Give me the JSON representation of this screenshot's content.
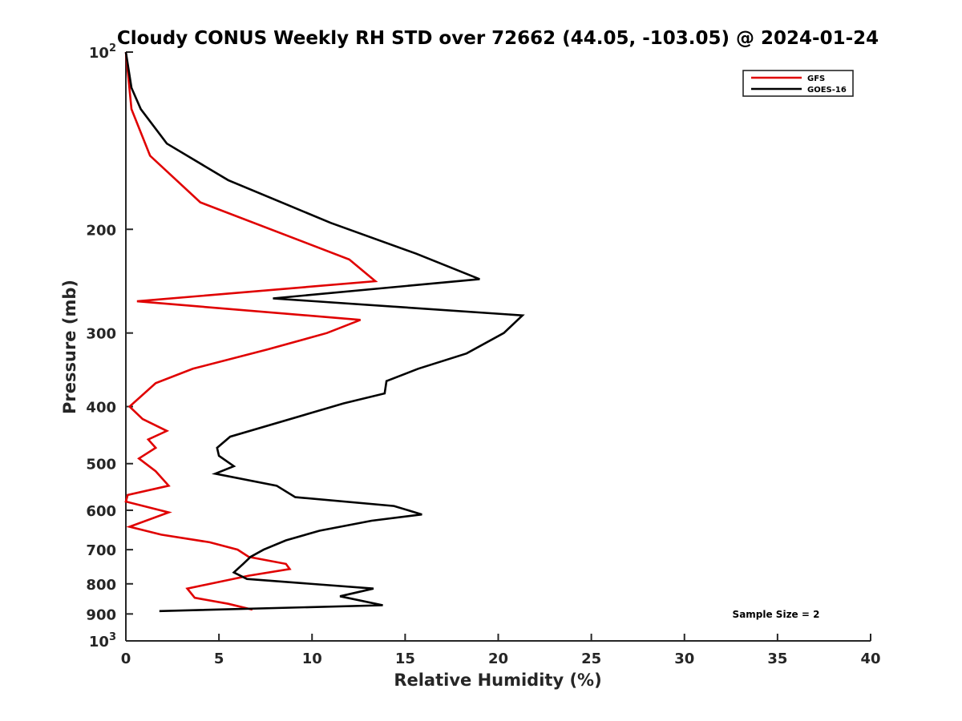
{
  "chart_data": {
    "type": "line",
    "orientation": "vertical-profile",
    "title": "Cloudy CONUS Weekly RH STD over 72662 (44.05, -103.05) @ 2024-01-24",
    "xlabel": "Relative Humidity (%)",
    "ylabel": "Pressure (mb)",
    "xlim": [
      0,
      40
    ],
    "ylim": [
      100,
      1000
    ],
    "y_scale": "log",
    "y_inverted": true,
    "grid": false,
    "xticks": [
      0,
      5,
      10,
      15,
      20,
      25,
      30,
      35,
      40
    ],
    "xtick_labels": [
      "0",
      "5",
      "10",
      "15",
      "20",
      "25",
      "30",
      "35",
      "40"
    ],
    "yticks": [
      100,
      200,
      300,
      400,
      500,
      600,
      700,
      800,
      900,
      1000
    ],
    "ytick_labels": [
      {
        "base": "10",
        "exp": "2"
      },
      {
        "text": "200"
      },
      {
        "text": "300"
      },
      {
        "text": "400"
      },
      {
        "text": "500"
      },
      {
        "text": "600"
      },
      {
        "text": "700"
      },
      {
        "text": "800"
      },
      {
        "text": "900"
      },
      {
        "base": "10",
        "exp": "3"
      }
    ],
    "legend_position": "top-right",
    "annotation": "Sample Size = 2",
    "series": [
      {
        "name": "GFS",
        "color": "#e00000",
        "points": [
          [
            0.0,
            100
          ],
          [
            0.3,
            125
          ],
          [
            1.3,
            150
          ],
          [
            4.0,
            180
          ],
          [
            12.0,
            225
          ],
          [
            13.4,
            245
          ],
          [
            0.6,
            265
          ],
          [
            12.6,
            285
          ],
          [
            10.8,
            300
          ],
          [
            7.6,
            320
          ],
          [
            3.6,
            345
          ],
          [
            1.6,
            365
          ],
          [
            0.2,
            400
          ],
          [
            0.9,
            420
          ],
          [
            2.2,
            440
          ],
          [
            1.2,
            455
          ],
          [
            1.6,
            470
          ],
          [
            0.7,
            490
          ],
          [
            1.6,
            515
          ],
          [
            2.3,
            545
          ],
          [
            0.1,
            565
          ],
          [
            0.0,
            580
          ],
          [
            2.3,
            605
          ],
          [
            0.2,
            640
          ],
          [
            1.9,
            660
          ],
          [
            4.5,
            680
          ],
          [
            6.0,
            700
          ],
          [
            6.6,
            720
          ],
          [
            8.6,
            740
          ],
          [
            8.8,
            755
          ],
          [
            6.6,
            775
          ],
          [
            3.3,
            815
          ],
          [
            3.7,
            845
          ],
          [
            5.5,
            865
          ],
          [
            6.8,
            885
          ]
        ]
      },
      {
        "name": "GOES-16",
        "color": "#000000",
        "points": [
          [
            0.0,
            100
          ],
          [
            0.3,
            115
          ],
          [
            0.8,
            125
          ],
          [
            2.2,
            143
          ],
          [
            5.5,
            165
          ],
          [
            11.0,
            195
          ],
          [
            15.6,
            220
          ],
          [
            19.0,
            243
          ],
          [
            7.9,
            262
          ],
          [
            21.3,
            280
          ],
          [
            20.3,
            300
          ],
          [
            18.3,
            325
          ],
          [
            15.7,
            345
          ],
          [
            14.0,
            362
          ],
          [
            13.9,
            380
          ],
          [
            11.7,
            395
          ],
          [
            5.6,
            450
          ],
          [
            4.9,
            470
          ],
          [
            5.0,
            485
          ],
          [
            5.8,
            505
          ],
          [
            4.8,
            520
          ],
          [
            8.1,
            545
          ],
          [
            9.1,
            570
          ],
          [
            14.4,
            590
          ],
          [
            15.9,
            610
          ],
          [
            13.2,
            625
          ],
          [
            10.4,
            650
          ],
          [
            8.6,
            675
          ],
          [
            7.4,
            700
          ],
          [
            6.7,
            720
          ],
          [
            6.3,
            740
          ],
          [
            5.8,
            765
          ],
          [
            6.5,
            785
          ],
          [
            13.3,
            815
          ],
          [
            11.5,
            840
          ],
          [
            13.8,
            870
          ],
          [
            1.8,
            890
          ]
        ]
      }
    ]
  }
}
